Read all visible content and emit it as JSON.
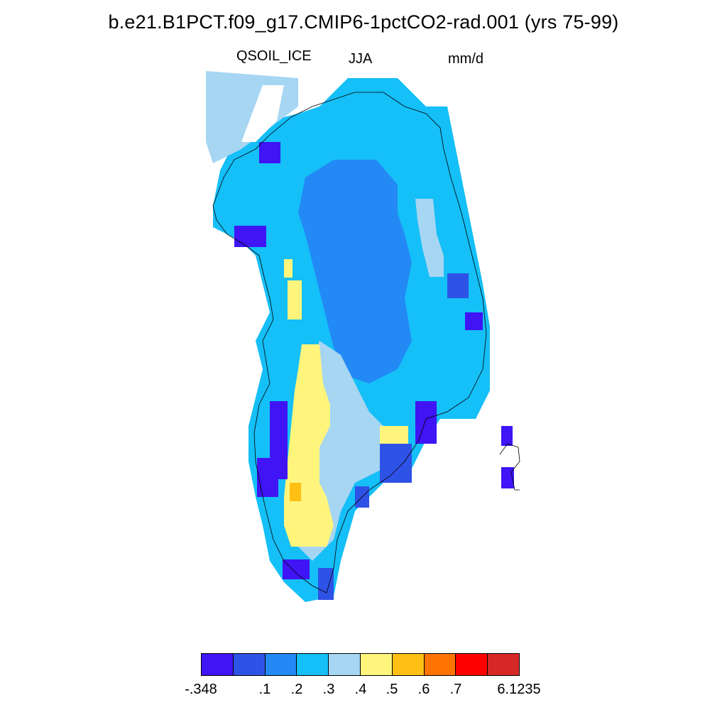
{
  "title": "b.e21.B1PCT.f09_g17.CMIP6-1pctCO2-rad.001 (yrs 75-99)",
  "variable": "QSOIL_ICE",
  "season": "JJA",
  "units": "mm/d",
  "colorbar": {
    "colors": [
      "#3f14f5",
      "#2f52e6",
      "#2289f5",
      "#15bff7",
      "#a6d6f2",
      "#fff57d",
      "#ffbf14",
      "#ff7300",
      "#ff0000",
      "#d62828"
    ],
    "labels": [
      "-.348",
      ".1",
      ".2",
      ".3",
      ".4",
      ".5",
      ".6",
      ".7",
      "6.1235"
    ]
  }
}
